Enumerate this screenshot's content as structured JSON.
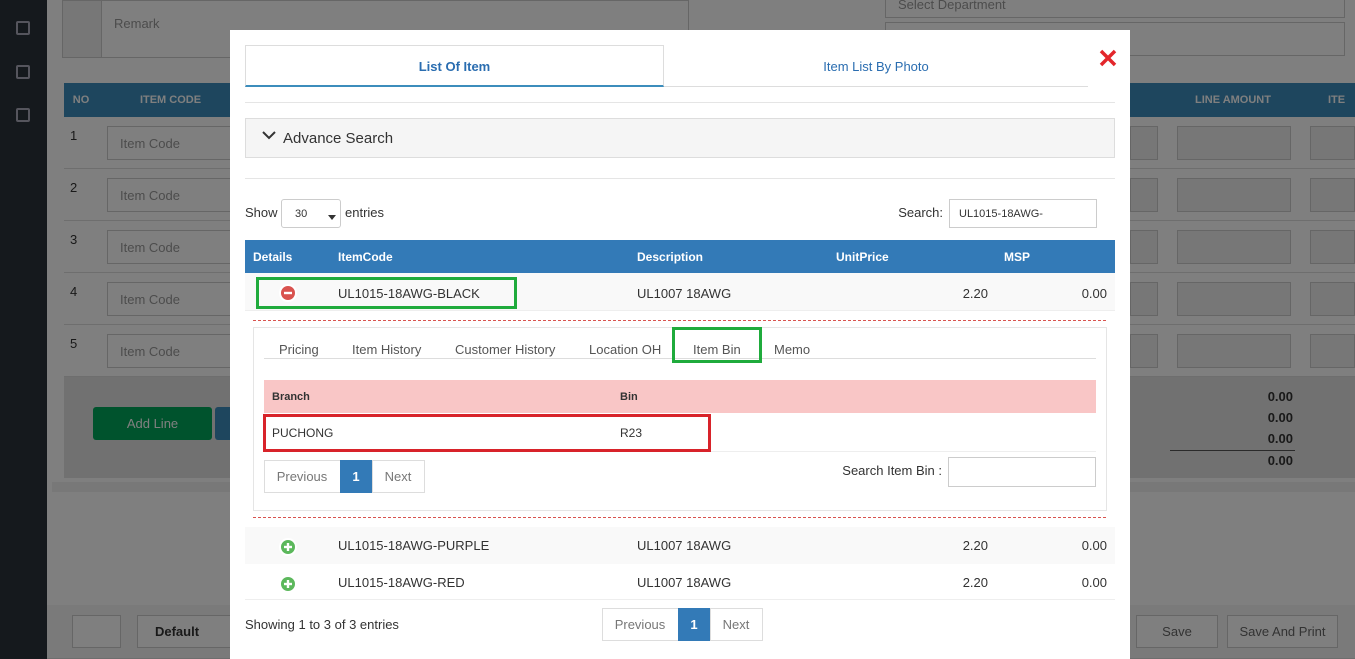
{
  "background": {
    "remark": "Remark",
    "department_placeholder": "Select Department",
    "table_headers": [
      "NO",
      "ITEM CODE",
      "LINE AMOUNT",
      "ITE"
    ],
    "rows": [
      "1",
      "2",
      "3",
      "4",
      "5"
    ],
    "item_code_placeholder": "Item Code",
    "add_line": "Add Line",
    "totals": [
      "0.00",
      "0.00",
      "0.00",
      "0.00"
    ],
    "default_button": "Default",
    "save_button": "Save",
    "save_and_print_button": "Save And Print"
  },
  "modal": {
    "tabs": [
      "List Of Item",
      "Item List By Photo"
    ],
    "advance_search": "Advance Search",
    "show_label": "Show",
    "page_size": "30",
    "entries_label": "entries",
    "search_label": "Search:",
    "search_value": "UL1015-18AWG-",
    "columns": [
      "Details",
      "ItemCode",
      "Description",
      "UnitPrice",
      "MSP"
    ],
    "items": [
      {
        "code": "UL1015-18AWG-BLACK",
        "description": "UL1007 18AWG",
        "unit_price": "2.20",
        "msp": "0.00"
      },
      {
        "code": "UL1015-18AWG-PURPLE",
        "description": "UL1007 18AWG",
        "unit_price": "2.20",
        "msp": "0.00"
      },
      {
        "code": "UL1015-18AWG-RED",
        "description": "UL1007 18AWG",
        "unit_price": "2.20",
        "msp": "0.00"
      }
    ],
    "detail": {
      "tabs": [
        "Pricing",
        "Item History",
        "Customer History",
        "Location OH",
        "Item Bin",
        "Memo"
      ],
      "bin_columns": [
        "Branch",
        "Bin"
      ],
      "bins": [
        {
          "branch": "PUCHONG",
          "bin": "R23"
        }
      ],
      "pagination": [
        "Previous",
        "1",
        "Next"
      ],
      "search_bin_label": "Search Item Bin :"
    },
    "summary": "Showing 1 to 3 of 3 entries",
    "pagination": [
      "Previous",
      "1",
      "Next"
    ]
  }
}
